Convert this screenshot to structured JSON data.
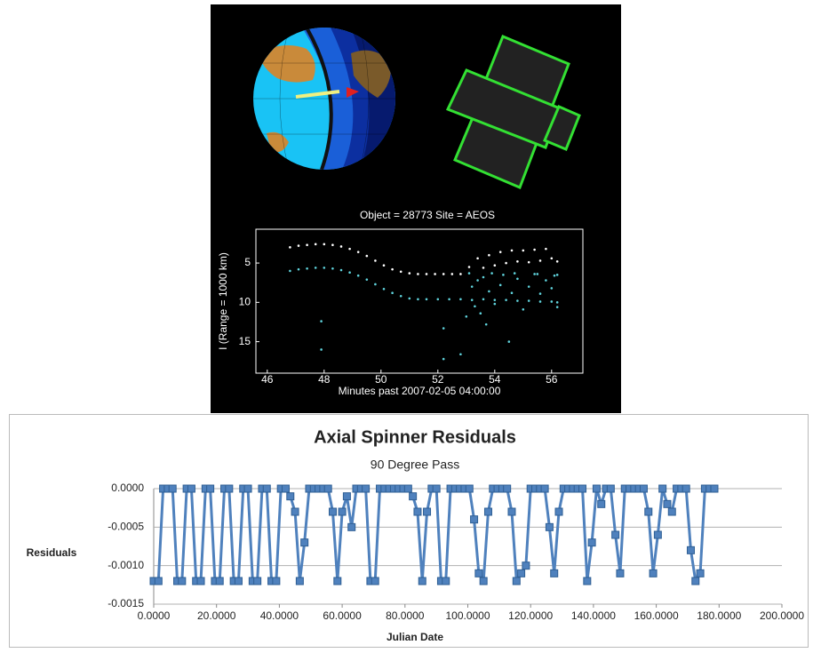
{
  "chart_data": [
    {
      "type": "scatter",
      "title": "Object = 28773    Site = AEOS",
      "x_label": "Minutes past 2007-02-05 04:00:00",
      "y_label": "I (Range = 1000 km)",
      "xlim": [
        45.6,
        57.1
      ],
      "xticks": [
        46,
        48,
        50,
        52,
        54,
        56
      ],
      "ylim": [
        19,
        0.7
      ],
      "yticks": [
        5,
        10,
        15
      ],
      "series": [
        {
          "color": "#ffffff",
          "x": [
            46.8,
            47.1,
            47.4,
            47.7,
            48.0,
            48.3,
            48.6,
            48.9,
            49.2,
            49.5,
            49.8,
            50.1,
            50.4,
            50.7,
            51.0,
            51.3,
            51.6,
            51.9,
            52.2,
            52.5,
            52.8,
            53.1,
            53.4,
            53.6,
            53.8,
            54.0,
            54.2,
            54.4,
            54.6,
            54.8,
            55.0,
            55.2,
            55.4,
            55.6,
            55.8,
            56.0,
            56.2
          ],
          "values": [
            3.0,
            2.8,
            2.7,
            2.6,
            2.6,
            2.7,
            2.9,
            3.2,
            3.6,
            4.1,
            4.7,
            5.3,
            5.8,
            6.1,
            6.3,
            6.4,
            6.4,
            6.4,
            6.4,
            6.4,
            6.4,
            5.5,
            4.4,
            5.6,
            4.0,
            5.3,
            3.6,
            5.0,
            3.4,
            4.8,
            3.4,
            4.9,
            3.3,
            4.7,
            3.2,
            4.4,
            4.8
          ]
        },
        {
          "color": "#5fd3dc",
          "x": [
            46.8,
            47.1,
            47.4,
            47.7,
            48.0,
            48.3,
            48.6,
            48.9,
            49.2,
            49.5,
            49.8,
            50.1,
            50.4,
            50.7,
            51.0,
            51.3,
            51.6,
            52.0,
            52.4,
            52.8,
            53.2,
            53.6,
            54.0,
            54.4,
            54.8,
            55.2,
            55.6,
            56.0,
            56.2,
            47.9,
            47.9,
            52.2,
            52.2,
            52.8,
            53.0,
            53.2,
            53.3,
            53.4,
            53.5,
            53.6,
            53.7,
            53.8,
            54.0,
            54.2,
            54.3,
            54.5,
            54.6,
            54.8,
            55.0,
            55.2,
            55.4,
            55.6,
            55.8,
            56.0,
            56.1,
            56.2,
            53.1,
            53.9,
            54.7,
            55.5,
            56.2
          ],
          "values": [
            6.0,
            5.8,
            5.7,
            5.6,
            5.6,
            5.7,
            5.9,
            6.2,
            6.6,
            7.1,
            7.7,
            8.3,
            8.8,
            9.2,
            9.5,
            9.6,
            9.6,
            9.6,
            9.6,
            9.6,
            9.7,
            9.6,
            9.7,
            9.7,
            9.8,
            9.8,
            9.9,
            9.9,
            10.0,
            12.4,
            16.0,
            13.3,
            17.2,
            16.6,
            11.8,
            8.0,
            10.5,
            7.2,
            11.4,
            6.8,
            12.8,
            8.6,
            10.2,
            7.8,
            6.5,
            15.0,
            8.8,
            7.0,
            10.9,
            8.0,
            6.4,
            8.9,
            7.2,
            8.2,
            6.6,
            10.6,
            6.3,
            6.3,
            6.3,
            6.4,
            6.5
          ]
        }
      ]
    },
    {
      "type": "line",
      "title": "Axial Spinner Residuals",
      "subtitle": "90 Degree Pass",
      "x_label": "Julian Date",
      "y_label": "Residuals",
      "color": "#4f81bd",
      "grid": true,
      "xlim": [
        0,
        200
      ],
      "xticks": [
        {
          "value": 0,
          "label": "0.0000"
        },
        {
          "value": 20,
          "label": "20.0000"
        },
        {
          "value": 40,
          "label": "40.0000"
        },
        {
          "value": 60,
          "label": "60.0000"
        },
        {
          "value": 80,
          "label": "80.0000"
        },
        {
          "value": 100,
          "label": "100.0000"
        },
        {
          "value": 120,
          "label": "120.0000"
        },
        {
          "value": 140,
          "label": "140.0000"
        },
        {
          "value": 160,
          "label": "160.0000"
        },
        {
          "value": 180,
          "label": "180.0000"
        },
        {
          "value": 200,
          "label": "200.0000"
        }
      ],
      "ylim": [
        -0.0015,
        0
      ],
      "yticks": [
        {
          "value": 0,
          "label": "0.0000"
        },
        -0.0005,
        {
          "value": -0.001,
          "label": "-0.0010"
        },
        {
          "value": -0.0015,
          "label": "-0.0015"
        }
      ],
      "x": [
        0,
        1.5,
        3,
        4.5,
        6,
        7.5,
        9,
        10.5,
        12,
        13.5,
        15,
        16.5,
        18,
        19.5,
        21,
        22.5,
        24,
        25.5,
        27,
        28.5,
        30,
        31.5,
        33,
        34.5,
        36,
        37.5,
        39,
        40.5,
        42,
        43.5,
        45,
        46.5,
        48,
        49.5,
        51,
        52.5,
        54,
        55.5,
        57,
        58.5,
        60,
        61.5,
        63,
        64.5,
        66,
        67.5,
        69,
        70.5,
        72,
        73.5,
        75,
        76.5,
        78,
        79.5,
        81,
        82.5,
        84,
        85.5,
        87,
        88.5,
        90,
        91.5,
        93,
        94.5,
        96,
        97.5,
        99,
        100.5,
        102,
        103.5,
        105,
        106.5,
        108,
        109.5,
        111,
        112.5,
        114,
        115.5,
        117,
        118.5,
        120,
        121.5,
        123,
        124.5,
        126,
        127.5,
        129,
        130.5,
        132,
        133.5,
        135,
        136.5,
        138,
        139.5,
        141,
        142.5,
        144,
        145.5,
        147,
        148.5,
        150,
        151.5,
        153,
        154.5,
        156,
        157.5,
        159,
        160.5,
        162,
        163.5,
        165,
        166.5,
        168,
        169.5,
        171,
        172.5,
        174,
        175.5,
        177,
        178.5
      ],
      "values": [
        -0.0012,
        -0.0012,
        0,
        0,
        0,
        -0.0012,
        -0.0012,
        0,
        0,
        -0.0012,
        -0.0012,
        0,
        0,
        -0.0012,
        -0.0012,
        0,
        0,
        -0.0012,
        -0.0012,
        0,
        0,
        -0.0012,
        -0.0012,
        0,
        0,
        -0.0012,
        -0.0012,
        0,
        0,
        -0.0001,
        -0.0003,
        -0.0012,
        -0.0007,
        0,
        0,
        0,
        0,
        0,
        -0.0003,
        -0.0012,
        -0.0003,
        -0.0001,
        -0.0005,
        0,
        0,
        0,
        -0.0012,
        -0.0012,
        0,
        0,
        0,
        0,
        0,
        0,
        0,
        -0.0001,
        -0.0003,
        -0.0012,
        -0.0003,
        0,
        0,
        -0.0012,
        -0.0012,
        0,
        0,
        0,
        0,
        0,
        -0.0004,
        -0.0011,
        -0.0012,
        -0.0003,
        0,
        0,
        0,
        0,
        -0.0003,
        -0.0012,
        -0.0011,
        -0.001,
        0,
        0,
        0,
        0,
        -0.0005,
        -0.0011,
        -0.0003,
        0,
        0,
        0,
        0,
        0,
        -0.0012,
        -0.0007,
        0,
        -0.0002,
        0,
        0,
        -0.0006,
        -0.0011,
        0,
        0,
        0,
        0,
        0,
        -0.0003,
        -0.0011,
        -0.0006,
        0,
        -0.0002,
        -0.0003,
        0,
        0,
        0,
        -0.0008,
        -0.0012,
        -0.0011,
        0,
        0,
        0
      ]
    }
  ]
}
